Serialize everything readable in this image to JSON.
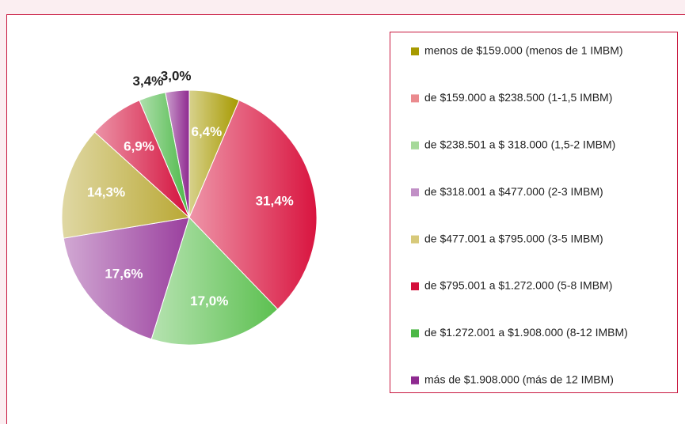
{
  "chart_data": {
    "type": "pie",
    "categories": [
      "menos de $159.000 (menos de 1 IMBM)",
      "de $159.000 a $238.500 (1-1,5 IMBM)",
      "de $238.501 a $ 318.000 (1,5-2 IMBM)",
      "de $318.001 a $477.000 (2-3 IMBM)",
      "de $477.001 a $795.000 (3-5 IMBM)",
      "de $795.001 a $1.272.000 (5-8 IMBM)",
      "de $1.272.001 a $1.908.000 (8-12 IMBM)",
      "más de $1.908.000 (más de 12 IMBM)"
    ],
    "values": [
      6.4,
      31.4,
      17.0,
      17.6,
      14.3,
      6.9,
      3.4,
      3.0
    ],
    "value_labels": [
      "6,4%",
      "31,4%",
      "17,0%",
      "17,6%",
      "14,3%",
      "6,9%",
      "3,4%",
      "3,0%"
    ],
    "colors": [
      "#a79a00",
      "#d9143f",
      "#5cc050",
      "#9a3f9e",
      "#b9a834",
      "#d4103c",
      "#4cb847",
      "#8e2a90"
    ],
    "swatch_colors": [
      "#a79a00",
      "#ea8a8e",
      "#a6d99a",
      "#c18fc6",
      "#d7c97a",
      "#d4103c",
      "#4cb847",
      "#8e2a90"
    ],
    "legend": "right"
  }
}
